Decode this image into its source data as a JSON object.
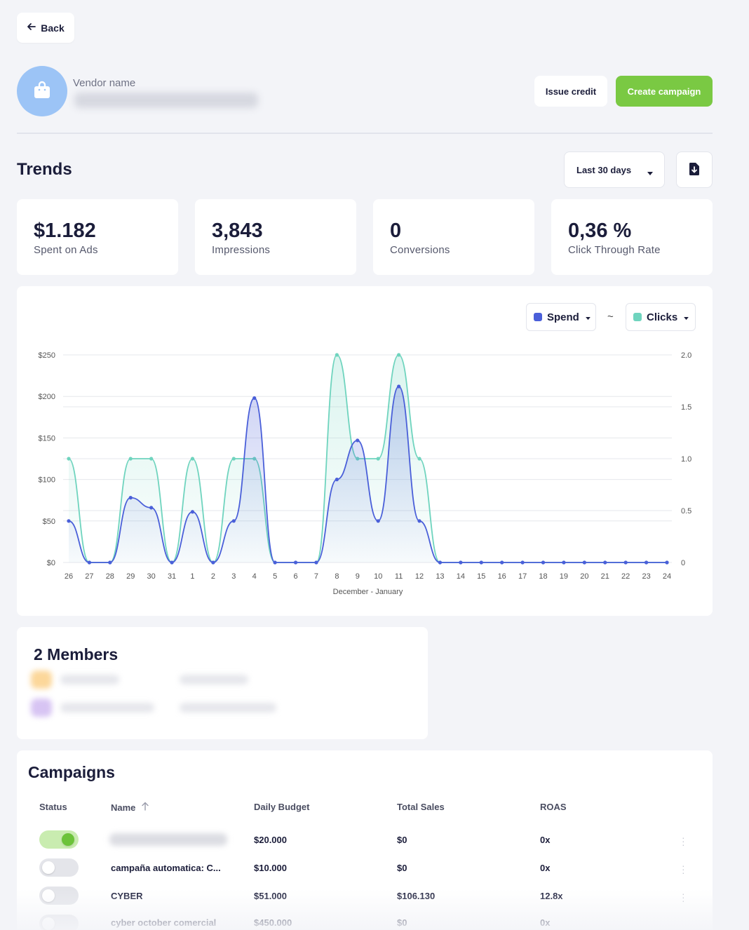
{
  "header": {
    "back_label": "Back",
    "vendor_label": "Vendor name",
    "issue_credit_label": "Issue credit",
    "create_campaign_label": "Create campaign"
  },
  "trends": {
    "title": "Trends",
    "range_label": "Last 30 days",
    "export_icon": "download-file-icon"
  },
  "stats": [
    {
      "value": "$1.182",
      "label": "Spent on Ads"
    },
    {
      "value": "3,843",
      "label": "Impressions"
    },
    {
      "value": "0",
      "label": "Conversions"
    },
    {
      "value": "0,36 %",
      "label": "Click Through Rate"
    }
  ],
  "chart_controls": {
    "left_metric": "Spend",
    "separator": "~",
    "right_metric": "Clicks"
  },
  "colors": {
    "spend": "#4a5fd9",
    "clicks": "#6fd4be",
    "accent_green": "#7ac943",
    "avatar_bg": "#9cc4f6"
  },
  "chart_data": {
    "type": "line",
    "xlabel": "December - January",
    "categories": [
      "26",
      "27",
      "28",
      "29",
      "30",
      "31",
      "1",
      "2",
      "3",
      "4",
      "5",
      "6",
      "7",
      "8",
      "9",
      "10",
      "11",
      "12",
      "13",
      "14",
      "15",
      "16",
      "17",
      "18",
      "19",
      "20",
      "21",
      "22",
      "23",
      "24"
    ],
    "y_left_ticks": [
      "$0",
      "$50",
      "$100",
      "$150",
      "$200",
      "$250"
    ],
    "y_left_range": [
      0,
      250
    ],
    "y_right_ticks": [
      "0",
      "0.5",
      "1.0",
      "1.5",
      "2.0"
    ],
    "y_right_range": [
      0,
      2
    ],
    "grid": true,
    "series": [
      {
        "name": "Spend",
        "axis": "left",
        "values": [
          50,
          0,
          0,
          78,
          66,
          0,
          61,
          0,
          50,
          198,
          0,
          0,
          0,
          100,
          147,
          50,
          212,
          50,
          0,
          0,
          0,
          0,
          0,
          0,
          0,
          0,
          0,
          0,
          0,
          0
        ]
      },
      {
        "name": "Clicks",
        "axis": "right",
        "values": [
          1,
          0,
          0,
          1,
          1,
          0,
          1,
          0,
          1,
          1,
          0,
          0,
          0,
          2,
          1,
          1,
          2,
          1,
          0,
          0,
          0,
          0,
          0,
          0,
          0,
          0,
          0,
          0,
          0,
          0
        ]
      }
    ]
  },
  "members": {
    "title": "2 Members"
  },
  "campaigns": {
    "title": "Campaigns",
    "columns": [
      "Status",
      "Name",
      "Daily Budget",
      "Total Sales",
      "ROAS"
    ],
    "rows": [
      {
        "status": "on",
        "name": "",
        "budget": "$20.000",
        "sales": "$0",
        "roas": "0x"
      },
      {
        "status": "off",
        "name": "campaña automatica: C...",
        "budget": "$10.000",
        "sales": "$0",
        "roas": "0x"
      },
      {
        "status": "off",
        "name": "CYBER",
        "budget": "$51.000",
        "sales": "$106.130",
        "roas": "12.8x"
      },
      {
        "status": "off",
        "name": "cyber october comercial",
        "budget": "$450.000",
        "sales": "$0",
        "roas": "0x"
      }
    ]
  }
}
